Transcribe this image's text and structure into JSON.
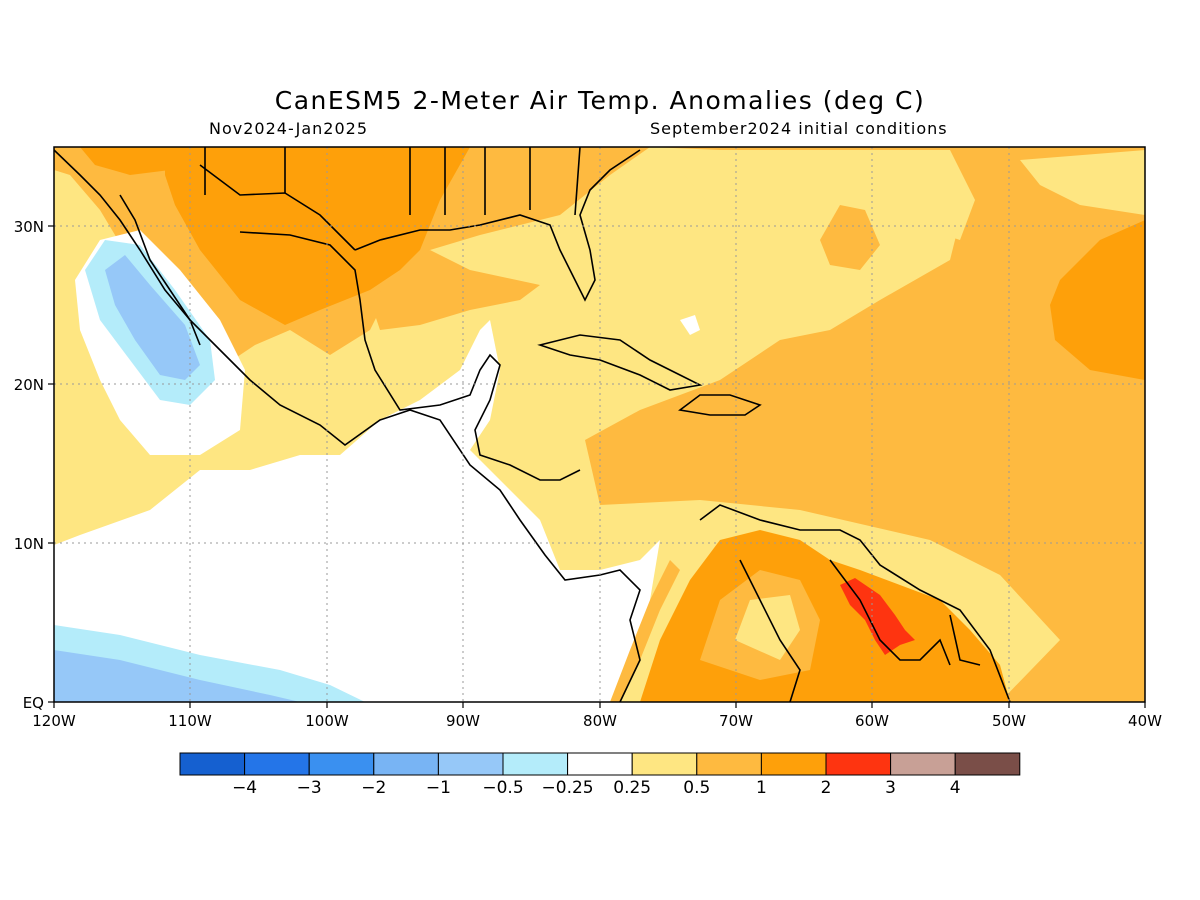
{
  "title": "CanESM5 2-Meter Air Temp. Anomalies (deg C)",
  "subtitle_left": "Nov2024-Jan2025",
  "subtitle_right": "September2024 initial conditions",
  "map": {
    "lon_range": [
      -120,
      -40
    ],
    "lat_range": [
      0,
      35
    ],
    "x_ticks": [
      "120W",
      "110W",
      "100W",
      "90W",
      "80W",
      "70W",
      "60W",
      "50W",
      "40W"
    ],
    "y_ticks": [
      "EQ",
      "10N",
      "20N",
      "30N"
    ],
    "grid": "dotted"
  },
  "colorbar": {
    "colors": [
      "#1560d0",
      "#2475e8",
      "#3a90f0",
      "#78b4f4",
      "#96c8f8",
      "#b4ecfa",
      "#ffffff",
      "#fee682",
      "#feba40",
      "#fea00a",
      "#fe3410",
      "#c8a096",
      "#7a4e48"
    ],
    "labels": [
      "-4",
      "-3",
      "-2",
      "-1",
      "-0.5",
      "-0.25",
      "0.25",
      "0.5",
      "1",
      "2",
      "3",
      "4"
    ]
  }
}
